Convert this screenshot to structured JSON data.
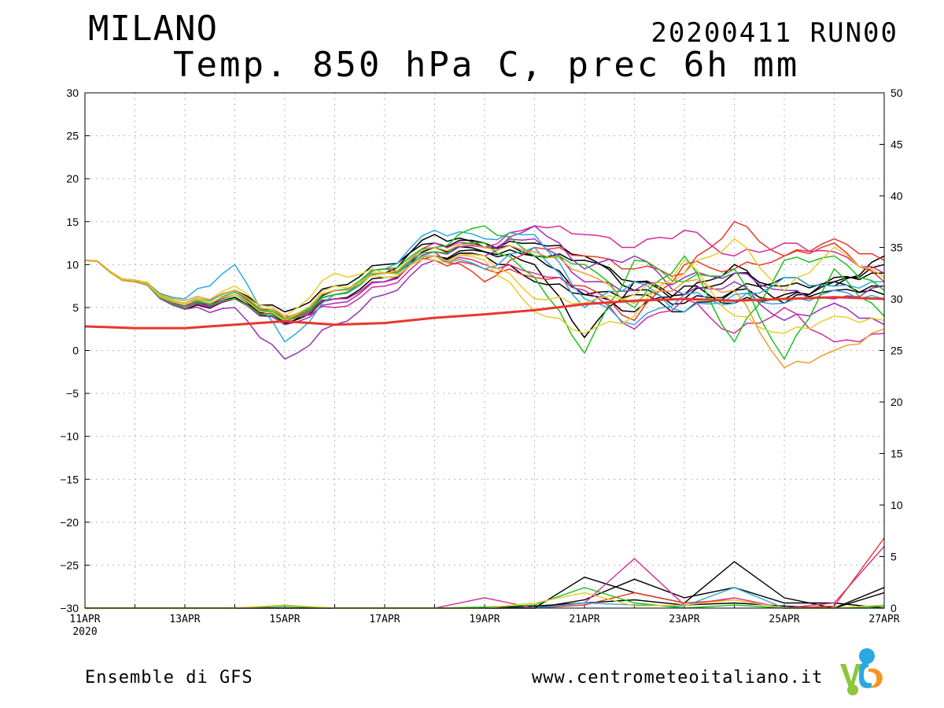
{
  "header": {
    "city": "MILANO",
    "run": "20200411 RUN00",
    "subtitle": "Temp. 850 hPa C, prec 6h mm"
  },
  "footer": {
    "left": "Ensemble di GFS",
    "right": "www.centrometeoitaliano.it"
  },
  "logo": {
    "icon": "vmc-logo-icon",
    "colors": [
      "#29a9e0",
      "#8dc63f",
      "#f7941d"
    ]
  },
  "chart_data": {
    "type": "line",
    "title": "Temp. 850 hPa C, prec 6h mm",
    "x_tick_labels": [
      "11APR",
      "13APR",
      "15APR",
      "17APR",
      "19APR",
      "21APR",
      "23APR",
      "25APR",
      "27APR"
    ],
    "x_year_label": "2020",
    "x_start_day": 11,
    "x_end_day": 27,
    "ylim_left": [
      -30,
      30
    ],
    "y_ticks_left": [
      "30",
      "25",
      "20",
      "15",
      "10",
      "5",
      "0",
      "−5",
      "−10",
      "−15",
      "−20",
      "−25",
      "−30"
    ],
    "ylim_right": [
      0,
      50
    ],
    "y_ticks_right": [
      "50",
      "45",
      "40",
      "35",
      "30",
      "25",
      "20",
      "15",
      "10",
      "5",
      "0"
    ],
    "grid": true,
    "mean_color": "#e8372d",
    "mean": {
      "x": [
        "2020-04-11",
        "2020-04-12",
        "2020-04-13",
        "2020-04-14",
        "2020-04-15",
        "2020-04-16",
        "2020-04-17",
        "2020-04-18",
        "2020-04-19",
        "2020-04-20",
        "2020-04-21",
        "2020-04-22",
        "2020-04-23",
        "2020-04-24",
        "2020-04-25",
        "2020-04-26",
        "2020-04-27"
      ],
      "y": [
        2.8,
        2.6,
        2.6,
        3.0,
        3.4,
        3.0,
        3.2,
        3.8,
        4.2,
        4.7,
        5.4,
        5.8,
        6.0,
        5.8,
        6.0,
        6.2,
        6.0
      ]
    },
    "temperature_series": [
      {
        "color": "#000000",
        "values": [
          10.5,
          8.0,
          5.2,
          6.5,
          3.5,
          6.5,
          9.0,
          11.0,
          11.5,
          11.0,
          10.5,
          8.0,
          6.0,
          9.0,
          7.5,
          8.0,
          10.0
        ]
      },
      {
        "color": "#000000",
        "values": [
          10.5,
          8.0,
          5.0,
          6.2,
          3.0,
          7.0,
          9.0,
          13.5,
          12.0,
          12.5,
          11.0,
          7.0,
          5.5,
          7.0,
          8.5,
          7.5,
          11.0
        ]
      },
      {
        "color": "#000000",
        "values": [
          10.5,
          8.0,
          5.5,
          7.0,
          4.5,
          7.5,
          10.0,
          12.5,
          12.5,
          11.0,
          6.5,
          4.5,
          7.5,
          5.5,
          6.5,
          7.0,
          7.5
        ]
      },
      {
        "color": "#000000",
        "values": [
          10.5,
          8.2,
          4.8,
          6.0,
          3.8,
          6.0,
          8.5,
          11.0,
          11.0,
          8.0,
          6.5,
          6.5,
          4.5,
          7.0,
          6.0,
          8.0,
          6.5
        ]
      },
      {
        "color": "#000000",
        "values": [
          10.5,
          8.0,
          5.0,
          6.5,
          3.2,
          6.0,
          8.0,
          12.0,
          11.5,
          10.0,
          1.5,
          8.0,
          6.5,
          10.0,
          5.5,
          8.5,
          9.0
        ]
      },
      {
        "color": "#e8372d",
        "values": [
          10.5,
          8.0,
          5.5,
          7.0,
          3.5,
          7.0,
          9.0,
          11.5,
          8.0,
          12.0,
          11.0,
          9.5,
          9.0,
          15.0,
          11.0,
          13.0,
          10.5
        ]
      },
      {
        "color": "#e8372d",
        "values": [
          10.5,
          8.0,
          5.5,
          6.5,
          3.6,
          6.5,
          9.5,
          10.5,
          9.5,
          8.5,
          7.5,
          3.5,
          10.0,
          9.5,
          11.0,
          12.5,
          8.0
        ]
      },
      {
        "color": "#d62a9a",
        "values": [
          10.5,
          8.0,
          5.0,
          6.0,
          3.5,
          6.0,
          8.0,
          12.5,
          12.0,
          14.5,
          13.5,
          12.0,
          14.0,
          11.0,
          12.5,
          11.5,
          9.0
        ]
      },
      {
        "color": "#d62a9a",
        "values": [
          10.5,
          8.2,
          5.2,
          6.5,
          4.0,
          5.0,
          7.5,
          11.0,
          10.0,
          9.0,
          7.0,
          2.5,
          6.0,
          2.0,
          5.0,
          1.0,
          2.0
        ]
      },
      {
        "color": "#9b30b8",
        "values": [
          10.5,
          8.0,
          4.8,
          5.0,
          -1.0,
          3.0,
          6.5,
          10.5,
          11.0,
          14.5,
          9.5,
          11.0,
          6.5,
          8.0,
          3.5,
          5.5,
          3.0
        ]
      },
      {
        "color": "#9b30b8",
        "values": [
          10.5,
          8.0,
          5.2,
          6.0,
          3.0,
          5.5,
          8.0,
          11.5,
          12.0,
          13.0,
          8.0,
          7.0,
          8.5,
          9.0,
          7.0,
          6.0,
          7.5
        ]
      },
      {
        "color": "#2ea8e0",
        "values": [
          10.5,
          8.0,
          6.0,
          10.0,
          1.0,
          6.5,
          9.5,
          14.0,
          13.0,
          13.5,
          6.0,
          3.0,
          6.5,
          5.5,
          8.5,
          7.5,
          8.0
        ]
      },
      {
        "color": "#2ea8e0",
        "values": [
          10.5,
          8.0,
          5.5,
          7.0,
          3.8,
          6.5,
          9.0,
          11.0,
          9.5,
          12.0,
          5.0,
          8.0,
          4.5,
          6.5,
          5.5,
          7.0,
          6.0
        ]
      },
      {
        "color": "#1fbf1f",
        "values": [
          10.5,
          8.0,
          5.5,
          6.0,
          3.4,
          6.5,
          9.0,
          11.5,
          12.5,
          8.5,
          -0.3,
          10.5,
          8.0,
          9.5,
          -1.0,
          9.5,
          4.0
        ]
      },
      {
        "color": "#1fbf1f",
        "values": [
          10.5,
          8.0,
          5.0,
          6.8,
          3.6,
          7.0,
          9.5,
          12.0,
          14.5,
          11.0,
          10.0,
          5.0,
          11.0,
          1.0,
          10.5,
          11.0,
          7.0
        ]
      },
      {
        "color": "#e8cc2a",
        "values": [
          10.5,
          8.0,
          5.3,
          7.5,
          4.0,
          9.0,
          9.0,
          10.5,
          11.0,
          6.0,
          5.5,
          6.5,
          9.0,
          13.0,
          7.0,
          12.0,
          8.5
        ]
      },
      {
        "color": "#e8cc2a",
        "values": [
          10.5,
          8.2,
          5.5,
          6.5,
          3.5,
          7.5,
          8.5,
          11.0,
          10.5,
          4.5,
          2.0,
          4.0,
          10.5,
          4.0,
          2.0,
          4.0,
          3.5
        ]
      },
      {
        "color": "#e8a030",
        "values": [
          10.5,
          8.0,
          5.8,
          7.0,
          3.8,
          7.0,
          9.0,
          12.0,
          12.0,
          11.5,
          9.0,
          5.5,
          8.0,
          7.0,
          -2.0,
          0.0,
          2.5
        ]
      }
    ],
    "precipitation_series": [
      {
        "color": "#000000",
        "values": [
          0,
          0,
          0,
          0,
          0,
          0,
          0,
          0,
          0,
          0,
          3.0,
          1.5,
          0.5,
          4.5,
          1.0,
          0.0,
          2.0
        ]
      },
      {
        "color": "#000000",
        "values": [
          0,
          0,
          0,
          0,
          0,
          0,
          0,
          0,
          0,
          0,
          0.8,
          2.8,
          1.0,
          2.0,
          0.5,
          0.5,
          0.0
        ]
      },
      {
        "color": "#000000",
        "values": [
          0,
          0,
          0,
          0,
          0,
          0,
          0,
          0,
          0,
          0.2,
          0.5,
          0.8,
          0.3,
          0.5,
          0.2,
          0.0,
          1.5
        ]
      },
      {
        "color": "#d62a9a",
        "values": [
          0,
          0,
          0,
          0,
          0,
          0,
          0,
          0,
          1.0,
          0,
          0.5,
          4.8,
          0.3,
          1.0,
          0.0,
          0.5,
          6.0
        ]
      },
      {
        "color": "#e8372d",
        "values": [
          0,
          0,
          0,
          0,
          0,
          0,
          0,
          0,
          0,
          0,
          0.3,
          1.5,
          0.5,
          0.8,
          0.0,
          0.2,
          6.8
        ]
      },
      {
        "color": "#2ea8e0",
        "values": [
          0,
          0,
          0,
          0,
          0,
          0,
          0,
          0,
          0,
          0,
          0.5,
          0.3,
          0.2,
          2.0,
          0.0,
          0.0,
          0.0
        ]
      },
      {
        "color": "#1fbf1f",
        "values": [
          0,
          0,
          0,
          0,
          0.2,
          0,
          0,
          0,
          0.1,
          0.3,
          2.0,
          0.5,
          0.0,
          0.3,
          0.0,
          0.0,
          0.2
        ]
      },
      {
        "color": "#e8cc2a",
        "values": [
          0,
          0,
          0,
          0,
          0.3,
          0,
          0,
          0,
          0,
          0.5,
          1.5,
          0.2,
          0.3,
          0.8,
          0.0,
          0.0,
          0.3
        ]
      }
    ]
  }
}
